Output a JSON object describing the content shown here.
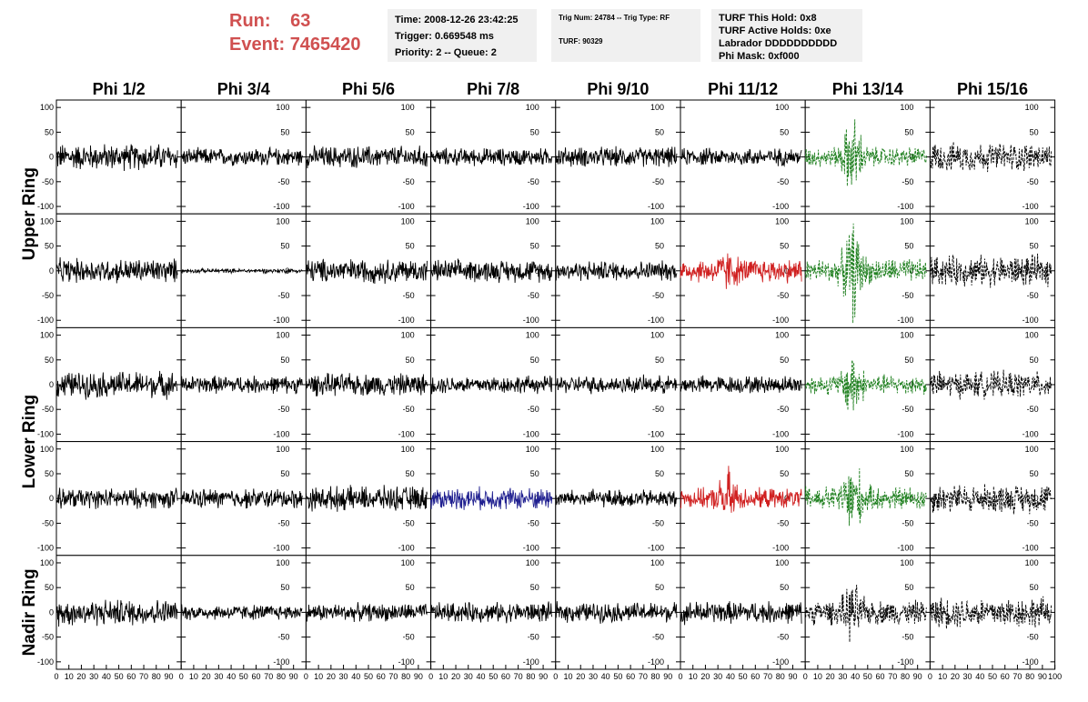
{
  "run": {
    "run_label": "Run:",
    "run_value": "63",
    "event_label": "Event:",
    "event_value": "7465420",
    "color": "#d05050"
  },
  "info": {
    "time": "Time: 2008-12-26 23:42:25",
    "trigger": "Trigger: 0.669548 ms",
    "priority": "Priority: 2 -- Queue: 2",
    "trig_num": "Trig Num: 24784 -- Trig Type: RF",
    "turf_num": "TURF: 90329",
    "turf_hold": "TURF This Hold: 0x8",
    "turf_active": "TURF Active Holds: 0xe",
    "labrador": "Labrador DDDDDDDDDD",
    "phi_mask": "Phi Mask: 0xf000"
  },
  "chart_data": {
    "type": "line",
    "columns": [
      "Phi 1/2",
      "Phi 3/4",
      "Phi 5/6",
      "Phi 7/8",
      "Phi 9/10",
      "Phi 11/12",
      "Phi 13/14",
      "Phi 15/16"
    ],
    "rows": [
      "Upper Ring",
      "Lower Ring",
      "Nadir Ring"
    ],
    "xlim": [
      0,
      100
    ],
    "ylim": [
      -115,
      115
    ],
    "yticks": [
      -100,
      -50,
      0,
      50,
      100
    ],
    "xticks": [
      0,
      10,
      20,
      30,
      40,
      50,
      60,
      70,
      80,
      90,
      100
    ],
    "colors": {
      "normal": "#000000",
      "triggered": "#d02020",
      "masked": "#208020",
      "blue": "#202090"
    },
    "panels": [
      {
        "row": 0,
        "col": 0,
        "amp": 24,
        "style": "normal"
      },
      {
        "row": 0,
        "col": 1,
        "amp": 16,
        "style": "normal"
      },
      {
        "row": 0,
        "col": 2,
        "amp": 20,
        "style": "normal"
      },
      {
        "row": 0,
        "col": 3,
        "amp": 16,
        "style": "normal"
      },
      {
        "row": 0,
        "col": 4,
        "amp": 18,
        "style": "normal"
      },
      {
        "row": 0,
        "col": 5,
        "amp": 16,
        "style": "normal"
      },
      {
        "row": 0,
        "col": 6,
        "amp": 18,
        "style": "masked",
        "dashed": true,
        "burst": 60
      },
      {
        "row": 0,
        "col": 7,
        "amp": 26,
        "style": "normal",
        "dashed": true
      },
      {
        "row": 1,
        "col": 0,
        "amp": 22,
        "style": "normal"
      },
      {
        "row": 1,
        "col": 1,
        "amp": 4,
        "style": "normal"
      },
      {
        "row": 1,
        "col": 2,
        "amp": 22,
        "style": "normal"
      },
      {
        "row": 1,
        "col": 3,
        "amp": 20,
        "style": "normal"
      },
      {
        "row": 1,
        "col": 4,
        "amp": 18,
        "style": "normal"
      },
      {
        "row": 1,
        "col": 5,
        "amp": 22,
        "style": "triggered",
        "burst": 18
      },
      {
        "row": 1,
        "col": 6,
        "amp": 22,
        "style": "masked",
        "dashed": true,
        "burst": 70
      },
      {
        "row": 1,
        "col": 7,
        "amp": 28,
        "style": "normal",
        "dashed": true
      },
      {
        "row": 2,
        "col": 0,
        "amp": 24,
        "style": "normal"
      },
      {
        "row": 2,
        "col": 1,
        "amp": 16,
        "style": "normal"
      },
      {
        "row": 2,
        "col": 2,
        "amp": 20,
        "style": "normal"
      },
      {
        "row": 2,
        "col": 3,
        "amp": 16,
        "style": "normal"
      },
      {
        "row": 2,
        "col": 4,
        "amp": 16,
        "style": "normal"
      },
      {
        "row": 2,
        "col": 5,
        "amp": 16,
        "style": "normal"
      },
      {
        "row": 2,
        "col": 6,
        "amp": 18,
        "style": "masked",
        "dashed": true,
        "burst": 50
      },
      {
        "row": 2,
        "col": 7,
        "amp": 24,
        "style": "normal",
        "dashed": true
      },
      {
        "row": 3,
        "col": 0,
        "amp": 18,
        "style": "normal"
      },
      {
        "row": 3,
        "col": 1,
        "amp": 18,
        "style": "normal"
      },
      {
        "row": 3,
        "col": 2,
        "amp": 22,
        "style": "normal"
      },
      {
        "row": 3,
        "col": 3,
        "amp": 20,
        "style": "blue"
      },
      {
        "row": 3,
        "col": 4,
        "amp": 16,
        "style": "normal"
      },
      {
        "row": 3,
        "col": 5,
        "amp": 18,
        "style": "triggered",
        "burst": 40
      },
      {
        "row": 3,
        "col": 6,
        "amp": 22,
        "style": "masked",
        "dashed": true,
        "burst": 60
      },
      {
        "row": 3,
        "col": 7,
        "amp": 26,
        "style": "normal",
        "dashed": true
      },
      {
        "row": 4,
        "col": 0,
        "amp": 24,
        "style": "normal"
      },
      {
        "row": 4,
        "col": 1,
        "amp": 14,
        "style": "normal"
      },
      {
        "row": 4,
        "col": 2,
        "amp": 16,
        "style": "normal"
      },
      {
        "row": 4,
        "col": 3,
        "amp": 18,
        "style": "normal"
      },
      {
        "row": 4,
        "col": 4,
        "amp": 18,
        "style": "normal"
      },
      {
        "row": 4,
        "col": 5,
        "amp": 20,
        "style": "normal"
      },
      {
        "row": 4,
        "col": 6,
        "amp": 22,
        "style": "normal",
        "dashed": true,
        "burst": 35
      },
      {
        "row": 4,
        "col": 7,
        "amp": 28,
        "style": "normal",
        "dashed": true
      }
    ]
  }
}
